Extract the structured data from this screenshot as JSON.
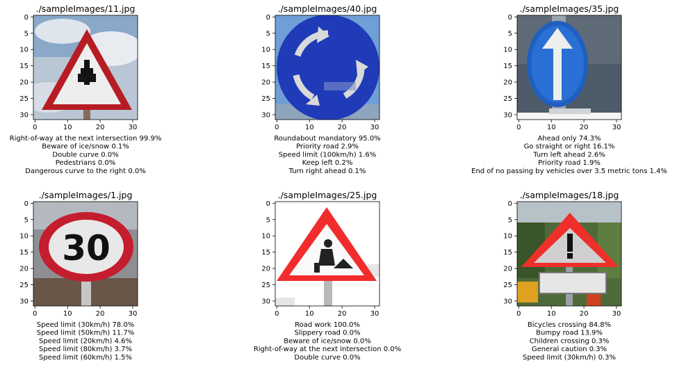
{
  "chart_data": [
    {
      "type": "image",
      "title": "./sampleImages/11.jpg",
      "xticks": [
        "0",
        "10",
        "20",
        "30"
      ],
      "yticks": [
        "0",
        "5",
        "10",
        "15",
        "20",
        "25",
        "30"
      ],
      "predictions": [
        {
          "label": "Right-of-way at the next intersection",
          "value": "99.9%"
        },
        {
          "label": "Beware of ice/snow",
          "value": "0.1%"
        },
        {
          "label": "Double curve",
          "value": "0.0%"
        },
        {
          "label": "Pedestrians",
          "value": "0.0%"
        },
        {
          "label": "Dangerous curve to the right",
          "value": "0.0%"
        }
      ]
    },
    {
      "type": "image",
      "title": "./sampleImages/40.jpg",
      "xticks": [
        "0",
        "10",
        "20",
        "30"
      ],
      "yticks": [
        "0",
        "5",
        "10",
        "15",
        "20",
        "25",
        "30"
      ],
      "predictions": [
        {
          "label": "Roundabout mandatory",
          "value": "95.0%"
        },
        {
          "label": "Priority road",
          "value": "2.9%"
        },
        {
          "label": "Speed limit (100km/h)",
          "value": "1.6%"
        },
        {
          "label": "Keep left",
          "value": "0.2%"
        },
        {
          "label": "Turn right ahead",
          "value": "0.1%"
        }
      ]
    },
    {
      "type": "image",
      "title": "./sampleImages/35.jpg",
      "xticks": [
        "0",
        "10",
        "20",
        "30"
      ],
      "yticks": [
        "0",
        "5",
        "10",
        "15",
        "20",
        "25",
        "30"
      ],
      "predictions": [
        {
          "label": "Ahead only",
          "value": "74.3%"
        },
        {
          "label": "Go straight or right",
          "value": "16.1%"
        },
        {
          "label": "Turn left ahead",
          "value": "2.6%"
        },
        {
          "label": "Priority road",
          "value": "1.9%"
        },
        {
          "label": "End of no passing by vehicles over 3.5 metric tons",
          "value": "1.4%"
        }
      ]
    },
    {
      "type": "image",
      "title": "./sampleImages/1.jpg",
      "xticks": [
        "0",
        "10",
        "20",
        "30"
      ],
      "yticks": [
        "0",
        "5",
        "10",
        "15",
        "20",
        "25",
        "30"
      ],
      "sign_text": "30",
      "predictions": [
        {
          "label": "Speed limit (30km/h)",
          "value": "78.0%"
        },
        {
          "label": "Speed limit (50km/h)",
          "value": "11.7%"
        },
        {
          "label": "Speed limit (20km/h)",
          "value": "4.6%"
        },
        {
          "label": "Speed limit (80km/h)",
          "value": "3.7%"
        },
        {
          "label": "Speed limit (60km/h)",
          "value": "1.5%"
        }
      ]
    },
    {
      "type": "image",
      "title": "./sampleImages/25.jpg",
      "xticks": [
        "0",
        "10",
        "20",
        "30"
      ],
      "yticks": [
        "0",
        "5",
        "10",
        "15",
        "20",
        "25",
        "30"
      ],
      "predictions": [
        {
          "label": "Road work",
          "value": "100.0%"
        },
        {
          "label": "Slippery road",
          "value": "0.0%"
        },
        {
          "label": "Beware of ice/snow",
          "value": "0.0%"
        },
        {
          "label": "Right-of-way at the next intersection",
          "value": "0.0%"
        },
        {
          "label": "Double curve",
          "value": "0.0%"
        }
      ]
    },
    {
      "type": "image",
      "title": "./sampleImages/18.jpg",
      "xticks": [
        "0",
        "10",
        "20",
        "30"
      ],
      "yticks": [
        "0",
        "5",
        "10",
        "15",
        "20",
        "25",
        "30"
      ],
      "predictions": [
        {
          "label": "Bicycles crossing",
          "value": "84.8%"
        },
        {
          "label": "Bumpy road",
          "value": "13.9%"
        },
        {
          "label": "Children crossing",
          "value": "0.3%"
        },
        {
          "label": "General caution",
          "value": "0.3%"
        },
        {
          "label": "Speed limit (30km/h)",
          "value": "0.3%"
        }
      ]
    }
  ]
}
